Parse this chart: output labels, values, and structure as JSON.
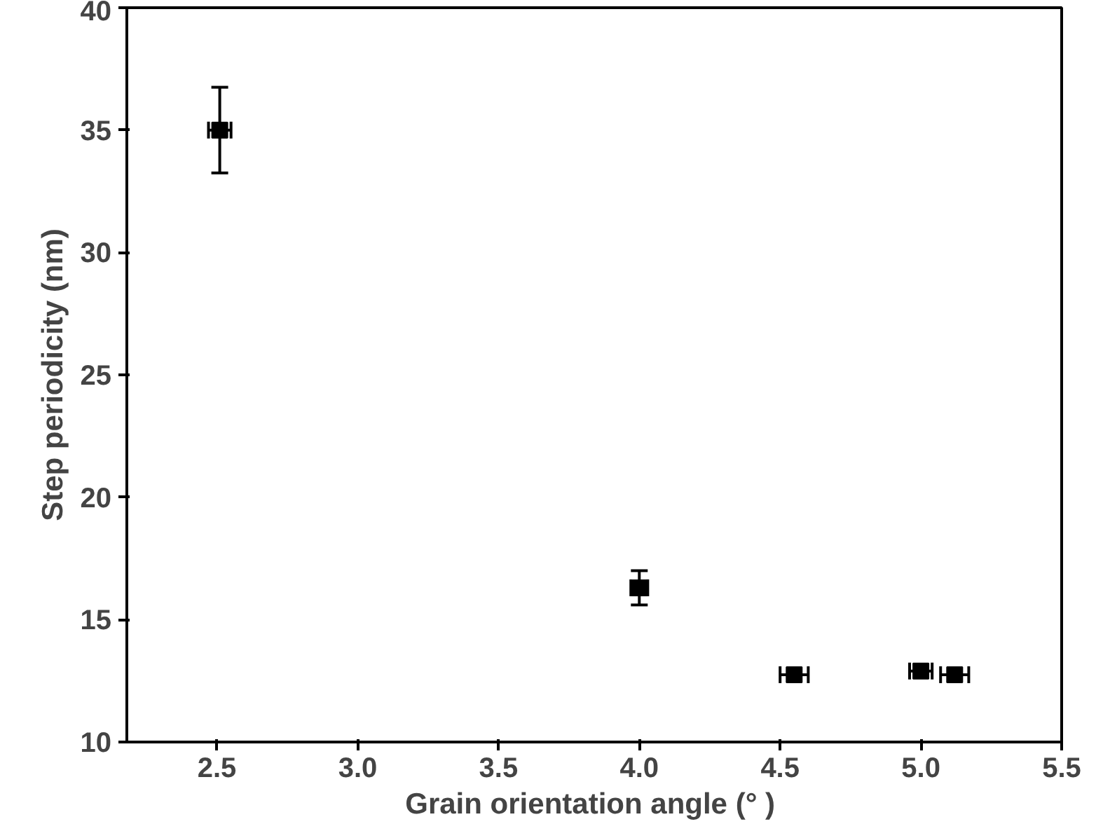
{
  "chart_data": {
    "type": "scatter",
    "xlabel": "Grain orientation angle (°  )",
    "ylabel": "Step periodicity (nm)",
    "x": [
      2.51,
      4.0,
      4.55,
      5.0,
      5.12
    ],
    "series": [
      {
        "color": "#000000",
        "values": [
          35.0,
          16.3,
          12.75,
          12.9,
          12.75
        ],
        "errors": [
          1.75,
          0.7,
          null,
          null,
          null
        ],
        "xerrors": [
          0.04,
          0.03,
          0.05,
          0.04,
          0.05
        ]
      }
    ],
    "xlim": [
      2.18,
      5.5
    ],
    "ylim": [
      10,
      40
    ],
    "xticks": [
      2.5,
      {
        "value": 3,
        "label": "3.0"
      },
      3.5,
      {
        "value": 4,
        "label": "4.0"
      },
      4.5,
      {
        "value": 5,
        "label": "5.0"
      },
      5.5
    ],
    "yticks": [
      10,
      15,
      20,
      25,
      30,
      35,
      40
    ],
    "marker": "square",
    "grid": false
  }
}
